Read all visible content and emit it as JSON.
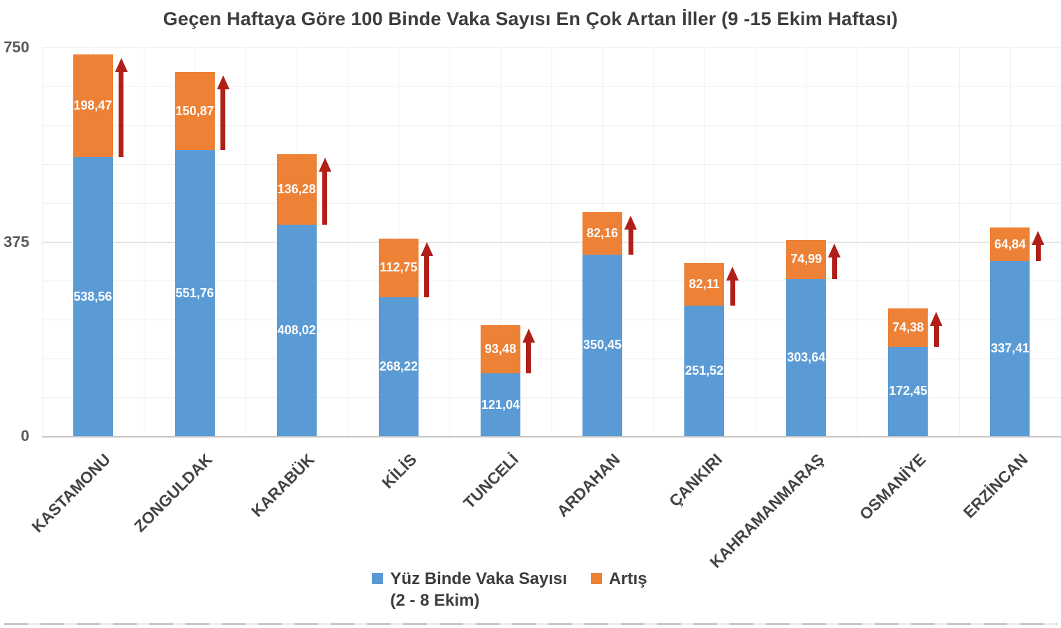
{
  "title": "Geçen Haftaya Göre 100 Binde Vaka Sayısı En Çok Artan İller (9 -15 Ekim Haftası)",
  "colors": {
    "base": "#5B9BD5",
    "increase": "#ED8136",
    "arrow": "#B02018"
  },
  "legend": {
    "base_label_line1": "Yüz Binde Vaka Sayısı",
    "base_label_line2": "(2 - 8 Ekim)",
    "increase_label": "Artış"
  },
  "chart_data": {
    "type": "bar",
    "stacked": true,
    "title": "Geçen Haftaya Göre 100 Binde Vaka Sayısı En Çok Artan İller (9 -15 Ekim Haftası)",
    "xlabel": "",
    "ylabel": "",
    "ylim": [
      0,
      750
    ],
    "yticks": [
      "0",
      "375",
      "750"
    ],
    "grid": true,
    "legend_position": "bottom",
    "categories": [
      "KASTAMONU",
      "ZONGULDAK",
      "KARABÜK",
      "KİLİS",
      "TUNCELİ",
      "ARDAHAN",
      "ÇANKIRI",
      "KAHRAMANMARAŞ",
      "OSMANİYE",
      "ERZİNCAN"
    ],
    "series": [
      {
        "name": "Yüz Binde Vaka Sayısı (2 - 8 Ekim)",
        "color": "#5B9BD5",
        "values": [
          538.56,
          551.76,
          408.02,
          268.22,
          121.04,
          350.45,
          251.52,
          303.64,
          172.45,
          337.41
        ]
      },
      {
        "name": "Artış",
        "color": "#ED8136",
        "values": [
          198.47,
          150.87,
          136.28,
          112.75,
          93.48,
          82.16,
          82.11,
          74.99,
          74.38,
          64.84
        ]
      }
    ],
    "value_labels": {
      "base": [
        "538,56",
        "551,76",
        "408,02",
        "268,22",
        "121,04",
        "350,45",
        "251,52",
        "303,64",
        "172,45",
        "337,41"
      ],
      "increase": [
        "198,47",
        "150,87",
        "136,28",
        "112,75",
        "93,48",
        "82,16",
        "82,11",
        "74,99",
        "74,38",
        "64,84"
      ]
    },
    "annotations": "dark red upward arrow beside each increase segment"
  }
}
